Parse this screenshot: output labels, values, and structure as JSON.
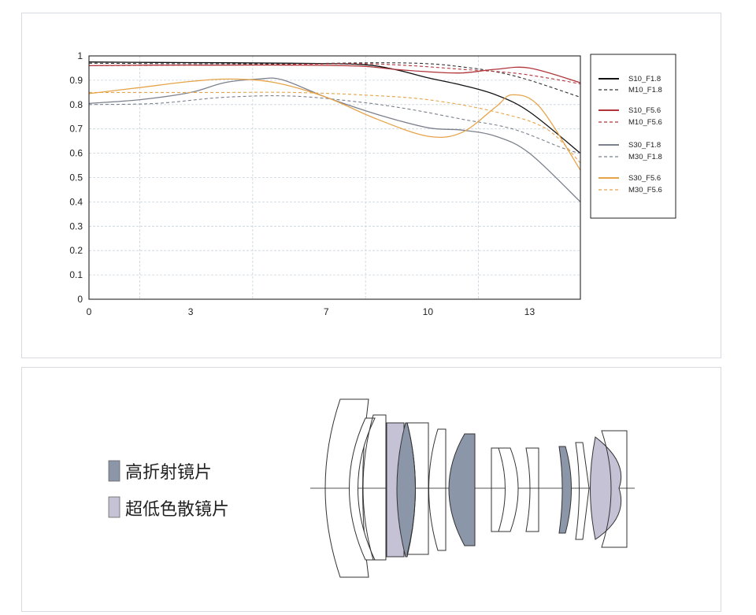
{
  "chart_data": {
    "type": "line",
    "title": "",
    "xlabel": "",
    "ylabel": "",
    "xlim": [
      0,
      14.5
    ],
    "ylim": [
      0,
      1
    ],
    "x_ticks": [
      0,
      3,
      7,
      10,
      13
    ],
    "x_tick_labels": [
      "0",
      "3",
      "7",
      "10",
      "13"
    ],
    "y_ticks": [
      0,
      0.1,
      0.2,
      0.3,
      0.4,
      0.5,
      0.6,
      0.7,
      0.8,
      0.9,
      1
    ],
    "y_tick_labels": [
      "0",
      "0.1",
      "0.2",
      "0.3",
      "0.4",
      "0.5",
      "0.6",
      "0.7",
      "0.8",
      "0.9",
      "1"
    ],
    "grid": true,
    "legend_position": "right",
    "series": [
      {
        "name": "S10_F1.8",
        "color": "#111111",
        "dash": false,
        "points": [
          [
            0,
            0.975
          ],
          [
            2,
            0.973
          ],
          [
            4,
            0.972
          ],
          [
            6,
            0.97
          ],
          [
            8,
            0.965
          ],
          [
            9,
            0.945
          ],
          [
            10,
            0.91
          ],
          [
            11,
            0.88
          ],
          [
            12,
            0.84
          ],
          [
            13,
            0.77
          ],
          [
            14.5,
            0.6
          ]
        ]
      },
      {
        "name": "M10_F1.8",
        "color": "#333333",
        "dash": true,
        "points": [
          [
            0,
            0.97
          ],
          [
            3,
            0.968
          ],
          [
            6,
            0.968
          ],
          [
            8.5,
            0.972
          ],
          [
            10,
            0.968
          ],
          [
            11,
            0.955
          ],
          [
            12,
            0.935
          ],
          [
            13,
            0.9
          ],
          [
            14.5,
            0.83
          ]
        ]
      },
      {
        "name": "S10_F5.6",
        "color": "#b0343a",
        "dash": false,
        "points": [
          [
            0,
            0.96
          ],
          [
            2,
            0.962
          ],
          [
            4,
            0.962
          ],
          [
            6,
            0.962
          ],
          [
            8,
            0.958
          ],
          [
            9,
            0.945
          ],
          [
            10,
            0.935
          ],
          [
            11,
            0.93
          ],
          [
            12,
            0.945
          ],
          [
            13,
            0.95
          ],
          [
            14.5,
            0.89
          ]
        ]
      },
      {
        "name": "M10_F5.6",
        "color": "#b0343a",
        "dash": true,
        "points": [
          [
            0,
            0.96
          ],
          [
            3,
            0.962
          ],
          [
            6,
            0.965
          ],
          [
            8,
            0.968
          ],
          [
            9.5,
            0.96
          ],
          [
            11,
            0.945
          ],
          [
            12.5,
            0.93
          ],
          [
            13.5,
            0.91
          ],
          [
            14.5,
            0.885
          ]
        ]
      },
      {
        "name": "S30_F1.8",
        "color": "#7b808c",
        "dash": false,
        "points": [
          [
            0,
            0.805
          ],
          [
            1.5,
            0.82
          ],
          [
            3,
            0.85
          ],
          [
            4,
            0.89
          ],
          [
            5,
            0.905
          ],
          [
            5.7,
            0.902
          ],
          [
            7,
            0.83
          ],
          [
            8.5,
            0.76
          ],
          [
            10,
            0.705
          ],
          [
            11,
            0.695
          ],
          [
            12,
            0.67
          ],
          [
            13,
            0.6
          ],
          [
            14.5,
            0.4
          ]
        ]
      },
      {
        "name": "M30_F1.8",
        "color": "#7b808c",
        "dash": true,
        "points": [
          [
            0,
            0.8
          ],
          [
            2,
            0.805
          ],
          [
            4,
            0.83
          ],
          [
            6,
            0.835
          ],
          [
            8,
            0.81
          ],
          [
            9.5,
            0.78
          ],
          [
            11,
            0.74
          ],
          [
            12.5,
            0.7
          ],
          [
            14,
            0.62
          ],
          [
            14.5,
            0.6
          ]
        ]
      },
      {
        "name": "S30_F5.6",
        "color": "#e6a44a",
        "dash": false,
        "points": [
          [
            0,
            0.845
          ],
          [
            1.5,
            0.87
          ],
          [
            3,
            0.895
          ],
          [
            4.2,
            0.905
          ],
          [
            5.5,
            0.89
          ],
          [
            7,
            0.83
          ],
          [
            8.5,
            0.74
          ],
          [
            10,
            0.67
          ],
          [
            11,
            0.685
          ],
          [
            12,
            0.79
          ],
          [
            12.5,
            0.84
          ],
          [
            13.3,
            0.79
          ],
          [
            14.5,
            0.53
          ]
        ]
      },
      {
        "name": "M30_F5.6",
        "color": "#e6a44a",
        "dash": true,
        "points": [
          [
            0,
            0.85
          ],
          [
            2,
            0.85
          ],
          [
            4,
            0.85
          ],
          [
            6,
            0.85
          ],
          [
            8,
            0.84
          ],
          [
            10,
            0.82
          ],
          [
            12,
            0.77
          ],
          [
            13.5,
            0.7
          ],
          [
            14.5,
            0.56
          ]
        ]
      }
    ]
  },
  "lens_legend": [
    {
      "label": "高折射镜片",
      "color": "#8b96a8"
    },
    {
      "label": "超低色散镜片",
      "color": "#c5c2d5"
    }
  ],
  "lens_colors": {
    "high_refraction": "#8b96a8",
    "ed": "#c5c2d5",
    "outline": "#333333"
  }
}
